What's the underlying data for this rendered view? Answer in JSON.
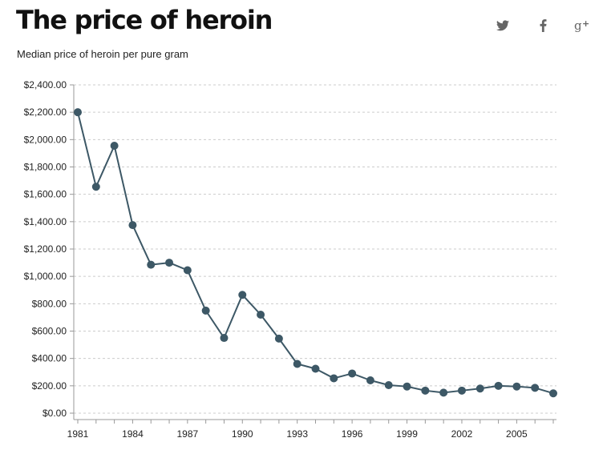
{
  "header": {
    "title": "The price of heroin",
    "subtitle": "Median price of heroin per pure gram"
  },
  "share": [
    {
      "name": "twitter-icon",
      "label": "Twitter"
    },
    {
      "name": "facebook-icon",
      "label": "Facebook"
    },
    {
      "name": "google-plus-icon",
      "label": "Google+"
    }
  ],
  "colors": {
    "line": "#3d5866",
    "grid": "#cccccc",
    "axis": "#999999",
    "icon": "#666666"
  },
  "chart_data": {
    "type": "line",
    "title": "The price of heroin",
    "subtitle": "Median price of heroin per pure gram",
    "xlabel": "",
    "ylabel": "",
    "x": [
      1981,
      1982,
      1983,
      1984,
      1985,
      1986,
      1987,
      1988,
      1989,
      1990,
      1991,
      1992,
      1993,
      1994,
      1995,
      1996,
      1997,
      1998,
      1999,
      2000,
      2001,
      2002,
      2003,
      2004,
      2005,
      2006,
      2007
    ],
    "series": [
      {
        "values": [
          2200,
          1655,
          1955,
          1375,
          1085,
          1100,
          1045,
          750,
          550,
          865,
          720,
          545,
          360,
          325,
          255,
          290,
          240,
          205,
          195,
          165,
          150,
          165,
          180,
          200,
          195,
          185,
          145
        ]
      }
    ],
    "xlim": [
      1981,
      2007
    ],
    "ylim": [
      0,
      2400
    ],
    "y_ticks": [
      0,
      200,
      400,
      600,
      800,
      1000,
      1200,
      1400,
      1600,
      1800,
      2000,
      2200,
      2400
    ],
    "y_tick_labels": [
      "$0.00",
      "$200.00",
      "$400.00",
      "$600.00",
      "$800.00",
      "$1,000.00",
      "$1,200.00",
      "$1,400.00",
      "$1,600.00",
      "$1,800.00",
      "$2,000.00",
      "$2,200.00",
      "$2,400.00"
    ],
    "x_tick_labels": [
      "1981",
      "1984",
      "1987",
      "1990",
      "1993",
      "1996",
      "1999",
      "2002",
      "2005"
    ],
    "x_tick_label_years": [
      1981,
      1984,
      1987,
      1990,
      1993,
      1996,
      1999,
      2002,
      2005
    ],
    "grid": true,
    "legend": "none"
  }
}
